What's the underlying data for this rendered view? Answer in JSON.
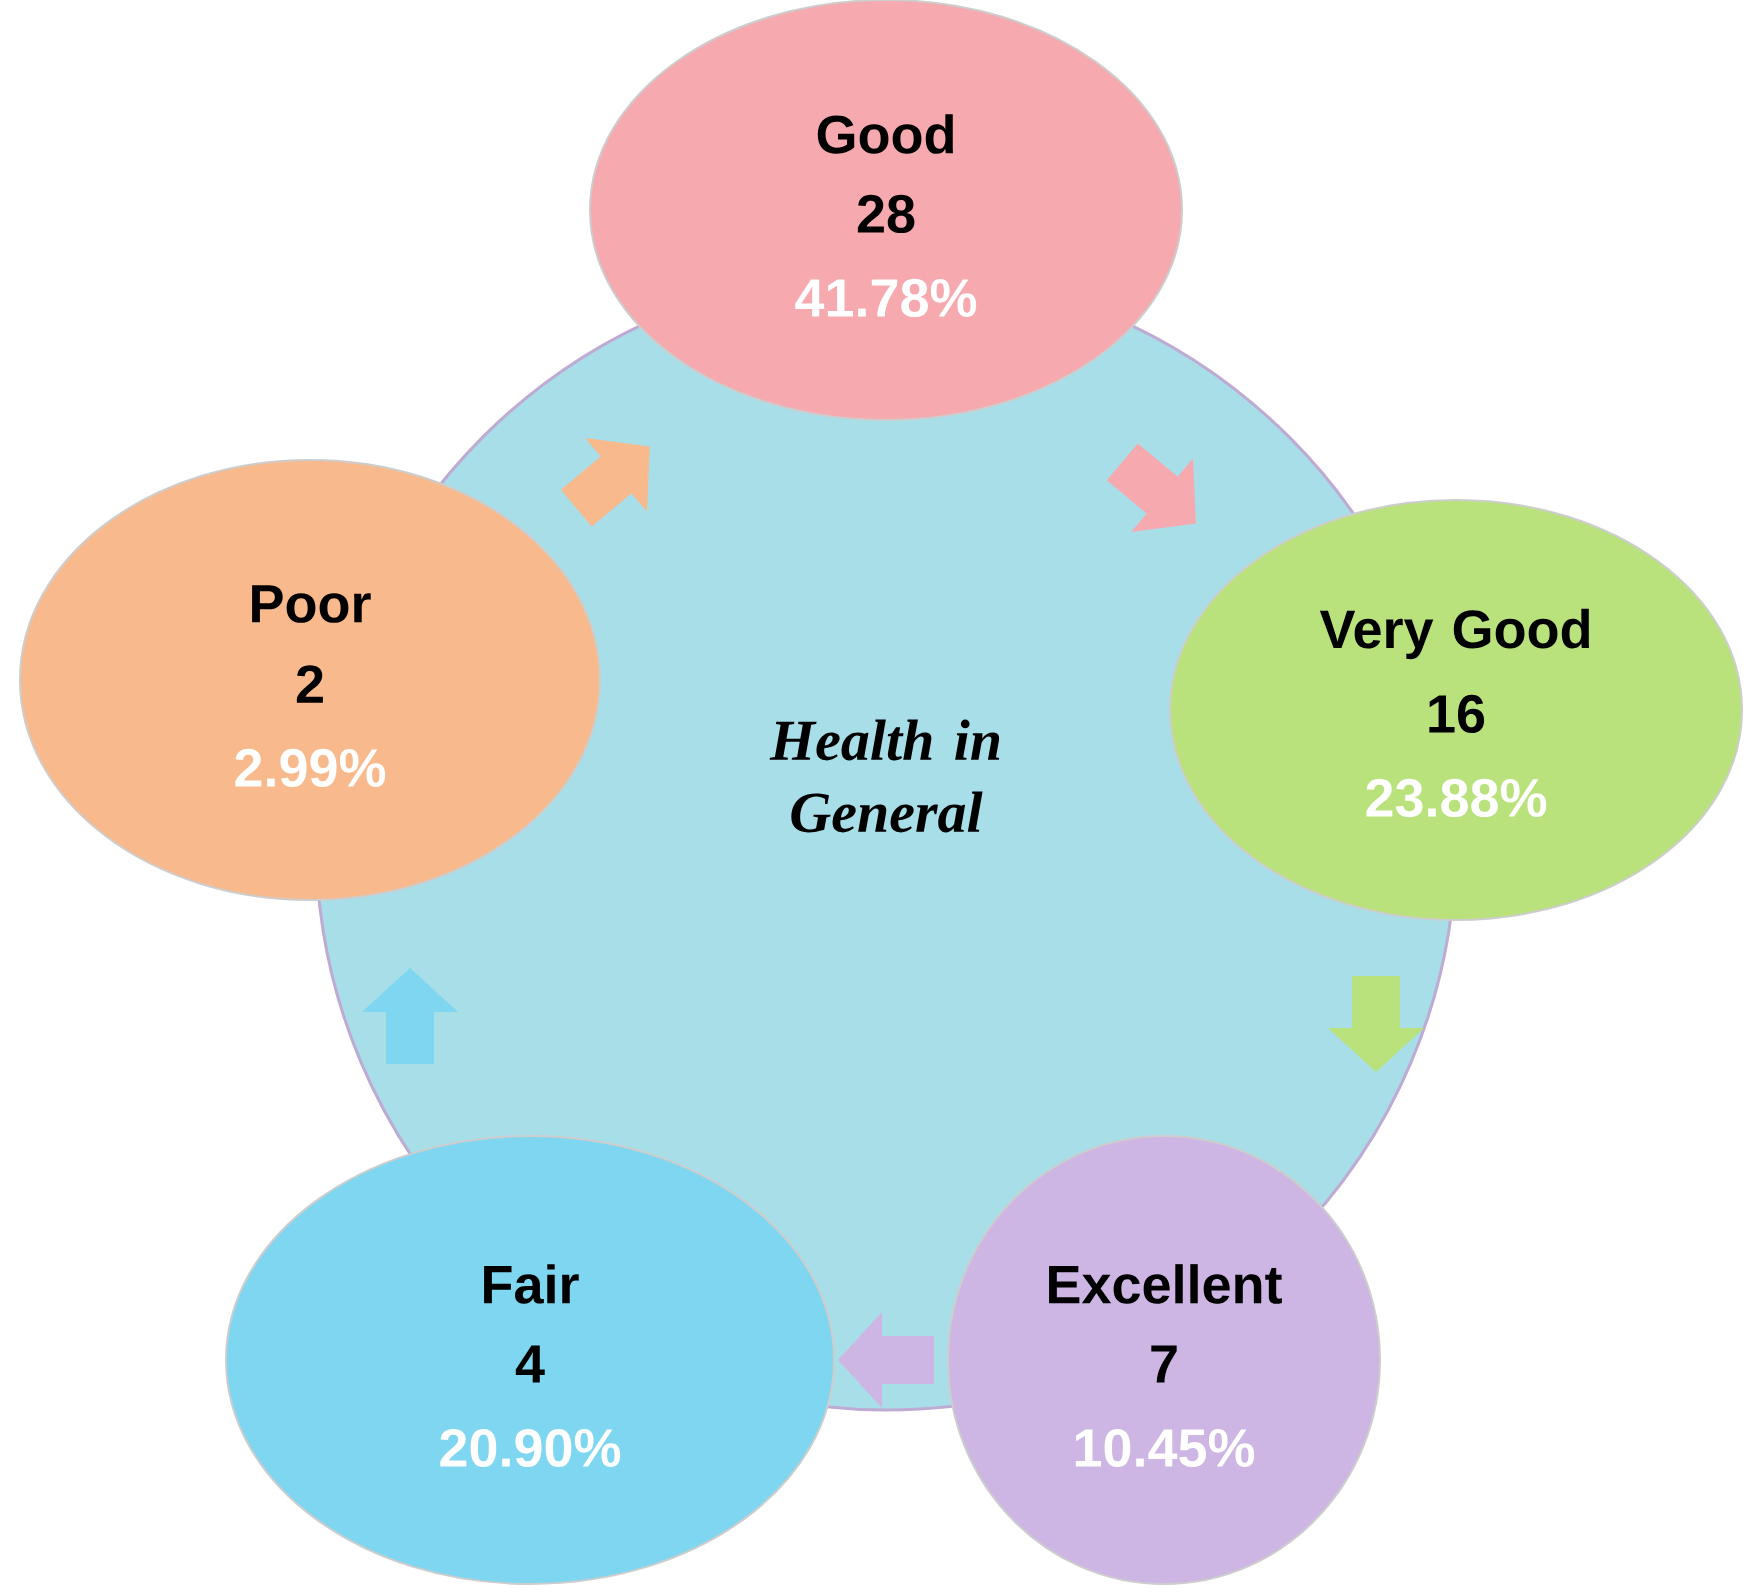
{
  "chart_data": {
    "type": "other",
    "title": "Health in General",
    "categories": [
      "Good",
      "Very Good",
      "Excellent",
      "Fair",
      "Poor"
    ],
    "values": [
      28,
      16,
      7,
      4,
      2
    ],
    "data_labels": true,
    "annotations": [
      "41.78%",
      "23.88%",
      "10.45%",
      "20.90%",
      "2.99%"
    ],
    "colors": [
      "#f6a9ae",
      "#b9e27c",
      "#cdb6e4",
      "#7ed6f0",
      "#f8b98c"
    ]
  }
}
